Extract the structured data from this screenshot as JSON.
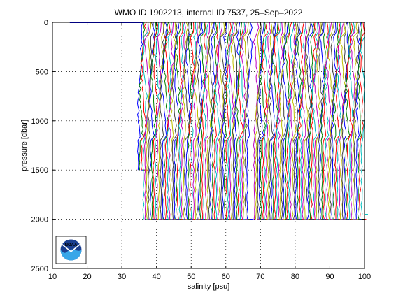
{
  "chart_data": {
    "type": "line",
    "title": "WMO ID 1902213, internal ID 7537, 25–Sep–2022",
    "xlabel": "salinity [psu]",
    "ylabel": "pressure [dbar]",
    "xlim": [
      10,
      100
    ],
    "ylim": [
      0,
      2500
    ],
    "y_reversed": true,
    "grid": true,
    "xticks": [
      "10",
      "20",
      "30",
      "40",
      "50",
      "60",
      "70",
      "80",
      "90",
      "100"
    ],
    "yticks": [
      "0",
      "500",
      "1000",
      "1500",
      "2000",
      "2500"
    ],
    "surface_line": {
      "x": [
        15,
        36
      ],
      "y": [
        0,
        0
      ],
      "color": "#0000ff"
    },
    "profiles": {
      "description_note": "",
      "first_offset": 35.0,
      "last_offset": 99.5,
      "count": 130,
      "max_pressure": 2000,
      "gap_range": [
        66.5,
        68.5
      ],
      "colors": [
        "#0000ff",
        "#008000",
        "#ff0000",
        "#00bfbf",
        "#bf00bf",
        "#bfbf00",
        "#404040"
      ]
    },
    "logo": {
      "text": "NOAA",
      "colors": [
        "#1b3f91",
        "#37a6e8",
        "#ffffff"
      ]
    }
  }
}
